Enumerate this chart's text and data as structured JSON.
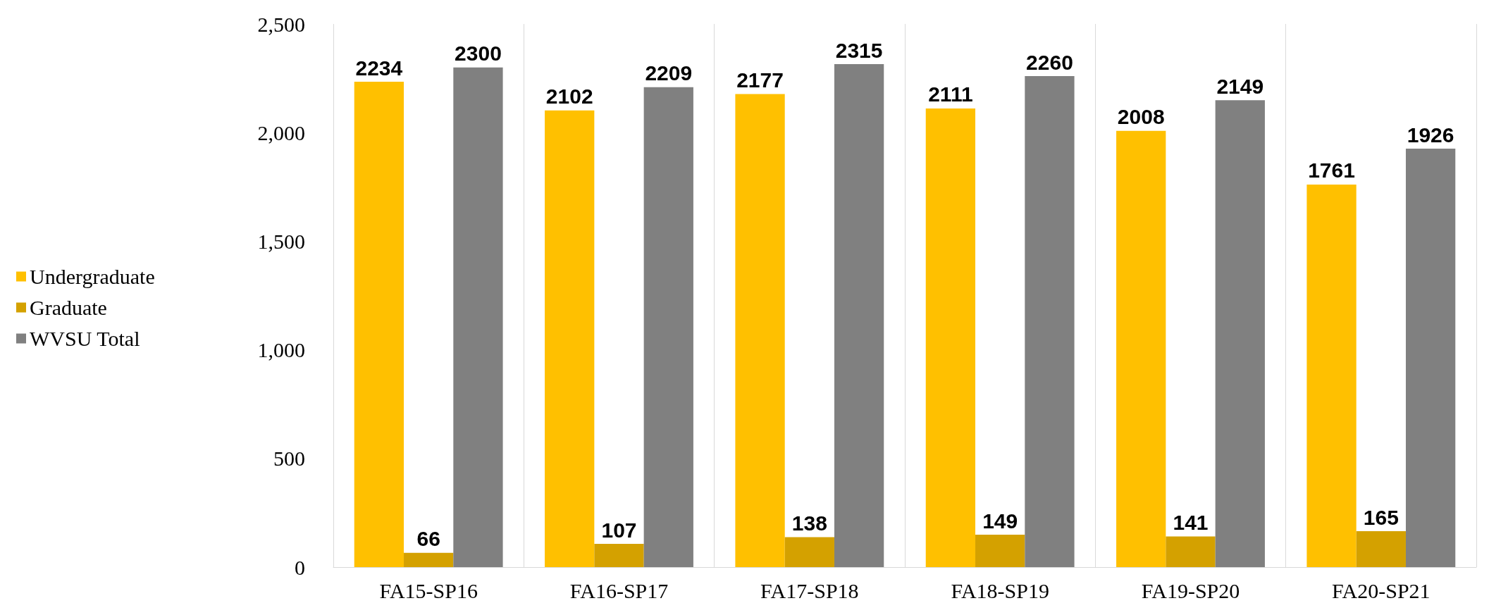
{
  "chart_data": {
    "type": "bar",
    "categories": [
      "FA15-SP16",
      "FA16-SP17",
      "FA17-SP18",
      "FA18-SP19",
      "FA19-SP20",
      "FA20-SP21"
    ],
    "series": [
      {
        "name": "Undergraduate",
        "color": "#ffc000",
        "values": [
          2234,
          2102,
          2177,
          2111,
          2008,
          1761
        ]
      },
      {
        "name": "Graduate",
        "color": "#d4a100",
        "values": [
          66,
          107,
          138,
          149,
          141,
          165
        ]
      },
      {
        "name": "WVSU Total",
        "color": "#808080",
        "values": [
          2300,
          2209,
          2315,
          2260,
          2149,
          1926
        ]
      }
    ],
    "ylim": [
      0,
      2500
    ],
    "yticks": [
      0,
      500,
      {
        "value": 1000,
        "label": "1,000"
      },
      {
        "value": 1500,
        "label": "1,500"
      },
      {
        "value": 2000,
        "label": "2,000"
      },
      {
        "value": 2500,
        "label": "2,500"
      }
    ],
    "grid": "x",
    "legend": "left",
    "data_labels": true
  }
}
